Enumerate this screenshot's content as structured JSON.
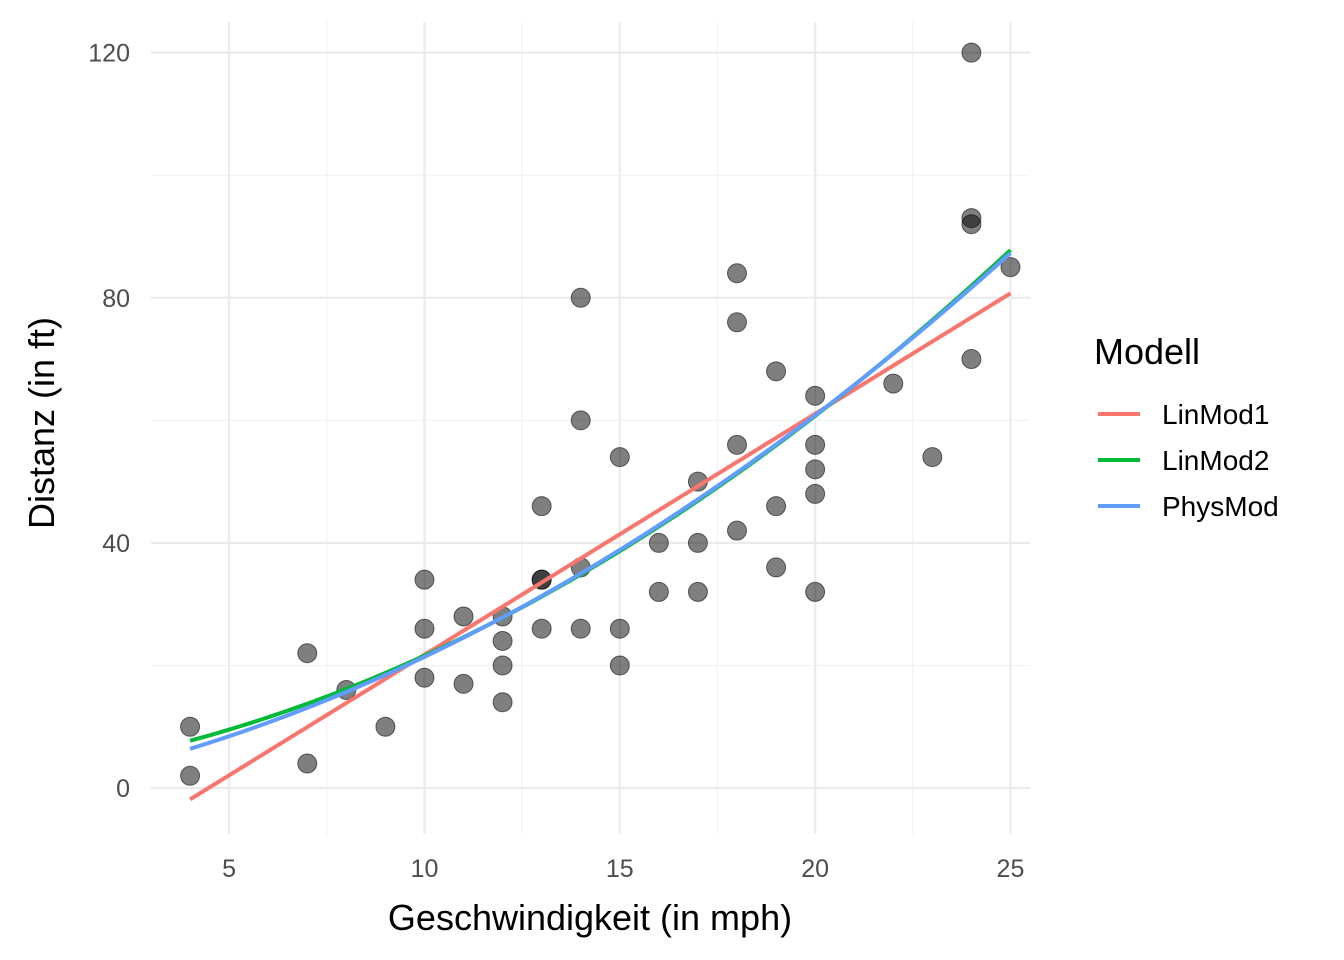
{
  "chart_data": {
    "type": "scatter",
    "xlabel": "Geschwindigkeit (in mph)",
    "ylabel": "Distanz (in ft)",
    "xlim": [
      3,
      25.5
    ],
    "ylim": [
      -7.5,
      125
    ],
    "x_ticks": [
      5,
      10,
      15,
      20,
      25
    ],
    "y_ticks": [
      0,
      40,
      80,
      120
    ],
    "x_tick_labels": [
      "5",
      "10",
      "15",
      "20",
      "25"
    ],
    "y_tick_labels": [
      "0",
      "40",
      "80",
      "120"
    ],
    "grid": true,
    "legend": {
      "title": "Modell",
      "position": "right"
    },
    "points": [
      [
        4,
        2
      ],
      [
        4,
        10
      ],
      [
        7,
        4
      ],
      [
        7,
        22
      ],
      [
        8,
        16
      ],
      [
        9,
        10
      ],
      [
        10,
        18
      ],
      [
        10,
        26
      ],
      [
        10,
        34
      ],
      [
        11,
        17
      ],
      [
        11,
        28
      ],
      [
        12,
        14
      ],
      [
        12,
        20
      ],
      [
        12,
        24
      ],
      [
        12,
        28
      ],
      [
        13,
        26
      ],
      [
        13,
        34
      ],
      [
        13,
        34
      ],
      [
        13,
        46
      ],
      [
        14,
        26
      ],
      [
        14,
        36
      ],
      [
        14,
        60
      ],
      [
        14,
        80
      ],
      [
        15,
        20
      ],
      [
        15,
        26
      ],
      [
        15,
        54
      ],
      [
        16,
        32
      ],
      [
        16,
        40
      ],
      [
        17,
        32
      ],
      [
        17,
        40
      ],
      [
        17,
        50
      ],
      [
        18,
        42
      ],
      [
        18,
        56
      ],
      [
        18,
        76
      ],
      [
        18,
        84
      ],
      [
        19,
        36
      ],
      [
        19,
        46
      ],
      [
        19,
        68
      ],
      [
        20,
        32
      ],
      [
        20,
        48
      ],
      [
        20,
        52
      ],
      [
        20,
        56
      ],
      [
        20,
        64
      ],
      [
        22,
        66
      ],
      [
        23,
        54
      ],
      [
        24,
        70
      ],
      [
        24,
        92
      ],
      [
        24,
        93
      ],
      [
        24,
        120
      ],
      [
        25,
        85
      ]
    ],
    "series": [
      {
        "name": "LinMod1",
        "color": "#F8766D",
        "model": "linear",
        "coef": [
          -17.5791,
          3.9324
        ],
        "x_range": [
          4,
          25
        ]
      },
      {
        "name": "LinMod2",
        "color": "#00BA38",
        "model": "quadratic",
        "coef": [
          2.47014,
          0.91329,
          0.09996
        ],
        "x_range": [
          4,
          25
        ]
      },
      {
        "name": "PhysMod",
        "color": "#619CFF",
        "model": "quadratic_no_intercept",
        "coef": [
          1.2393,
          0.0901
        ],
        "x_range": [
          4,
          25
        ]
      }
    ]
  }
}
